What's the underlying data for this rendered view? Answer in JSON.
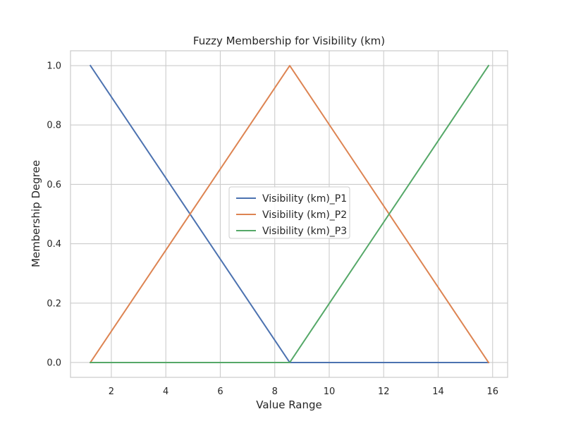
{
  "chart_data": {
    "type": "line",
    "title": "Fuzzy Membership for Visibility (km)",
    "xlabel": "Value Range",
    "ylabel": "Membership Degree",
    "xlim": [
      0.5,
      16.55
    ],
    "ylim": [
      -0.05,
      1.05
    ],
    "xticks": [
      2,
      4,
      6,
      8,
      10,
      12,
      14,
      16
    ],
    "xtick_labels": [
      "2",
      "4",
      "6",
      "8",
      "10",
      "12",
      "14",
      "16"
    ],
    "yticks": [
      0.0,
      0.2,
      0.4,
      0.6,
      0.8,
      1.0
    ],
    "ytick_labels": [
      "0.0",
      "0.2",
      "0.4",
      "0.6",
      "0.8",
      "1.0"
    ],
    "grid": true,
    "legend": "center",
    "series": [
      {
        "name": "Visibility (km)_P1",
        "color": "#4c72b0",
        "x": [
          1.23,
          8.55,
          15.85
        ],
        "y": [
          1.0,
          0.0,
          0.0
        ]
      },
      {
        "name": "Visibility (km)_P2",
        "color": "#dd8452",
        "x": [
          1.23,
          8.55,
          15.85
        ],
        "y": [
          0.0,
          1.0,
          0.0
        ]
      },
      {
        "name": "Visibility (km)_P3",
        "color": "#55a868",
        "x": [
          1.23,
          8.55,
          15.85
        ],
        "y": [
          0.0,
          0.0,
          1.0
        ]
      }
    ]
  }
}
